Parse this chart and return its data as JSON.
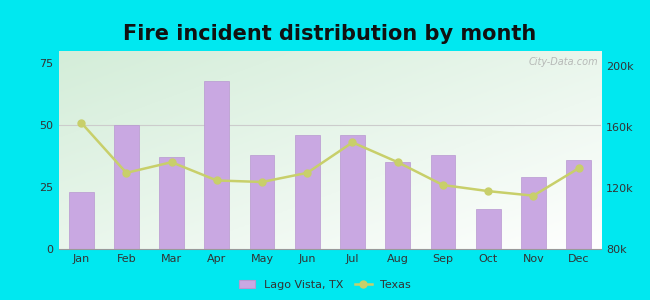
{
  "title": "Fire incident distribution by month",
  "months": [
    "Jan",
    "Feb",
    "Mar",
    "Apr",
    "May",
    "Jun",
    "Jul",
    "Aug",
    "Sep",
    "Oct",
    "Nov",
    "Dec"
  ],
  "lago_vista": [
    23,
    50,
    37,
    68,
    38,
    46,
    46,
    35,
    38,
    16,
    29,
    36
  ],
  "texas": [
    163000,
    130000,
    137000,
    125000,
    124000,
    130000,
    150000,
    137000,
    122000,
    118000,
    115000,
    133000
  ],
  "bar_color": "#c9a8e2",
  "line_color": "#c8cf6a",
  "bar_edge_color": "#b898d0",
  "left_ylim": [
    0,
    80
  ],
  "left_yticks": [
    0,
    25,
    50,
    75
  ],
  "right_ylim": [
    80000,
    210000
  ],
  "right_yticks": [
    80000,
    120000,
    160000,
    200000
  ],
  "right_yticklabels": [
    "80k",
    "120k",
    "160k",
    "200k"
  ],
  "outer_bg": "#00e8f0",
  "title_fontsize": 15,
  "watermark": "City-Data.com",
  "bg_gradient_left": "#d4edda",
  "bg_gradient_right": "#f0f8f0"
}
